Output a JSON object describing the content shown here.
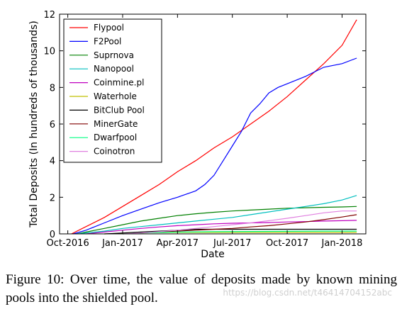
{
  "chart_data": {
    "type": "line",
    "xlabel": "Date",
    "ylabel": "Total Deposits (In hundreds of thousands)",
    "x_ticks": [
      "Oct-2016",
      "Jan-2017",
      "Apr-2017",
      "Jul-2017",
      "Oct-2017",
      "Jan-2018"
    ],
    "x_tick_positions_months": [
      0,
      3,
      6,
      9,
      12,
      15
    ],
    "xlim_months": [
      -0.45,
      16.3
    ],
    "ylim": [
      0,
      12
    ],
    "y_ticks": [
      0,
      2,
      4,
      6,
      8,
      10,
      12
    ],
    "grid": false,
    "legend_position": "top-left",
    "series": [
      {
        "name": "Flypool",
        "color": "#ff0000",
        "x": [
          0.2,
          1,
          2,
          3,
          4,
          5,
          6,
          7,
          8,
          9,
          10,
          11,
          12,
          13,
          14,
          15,
          15.8
        ],
        "y": [
          0,
          0.4,
          0.9,
          1.5,
          2.1,
          2.7,
          3.4,
          4.0,
          4.7,
          5.3,
          6.0,
          6.7,
          7.5,
          8.4,
          9.3,
          10.3,
          11.7
        ]
      },
      {
        "name": "F2Pool",
        "color": "#0000ff",
        "x": [
          0.3,
          1,
          2,
          3,
          4,
          5,
          6,
          7,
          7.5,
          8,
          8.5,
          9,
          9.5,
          10,
          10.5,
          11,
          11.5,
          12,
          13,
          14,
          15,
          15.8
        ],
        "y": [
          0,
          0.2,
          0.6,
          1.0,
          1.35,
          1.7,
          2.0,
          2.35,
          2.7,
          3.2,
          4.0,
          4.8,
          5.6,
          6.6,
          7.1,
          7.7,
          8.0,
          8.2,
          8.6,
          9.1,
          9.3,
          9.6
        ]
      },
      {
        "name": "Suprnova",
        "color": "#008000",
        "x": [
          0.5,
          1,
          2,
          3,
          4,
          5,
          6,
          7,
          8,
          9,
          10,
          11,
          12,
          13,
          14,
          15,
          15.8
        ],
        "y": [
          0,
          0.1,
          0.3,
          0.5,
          0.7,
          0.85,
          1.0,
          1.1,
          1.18,
          1.25,
          1.3,
          1.35,
          1.4,
          1.43,
          1.45,
          1.47,
          1.5
        ]
      },
      {
        "name": "Nanopool",
        "color": "#00bfbf",
        "x": [
          0.5,
          1,
          2,
          3,
          4,
          5,
          6,
          7,
          8,
          9,
          10,
          11,
          12,
          13,
          14,
          15,
          15.8
        ],
        "y": [
          0,
          0.05,
          0.15,
          0.3,
          0.4,
          0.5,
          0.6,
          0.7,
          0.8,
          0.9,
          1.05,
          1.2,
          1.35,
          1.5,
          1.65,
          1.85,
          2.1
        ]
      },
      {
        "name": "Coinmine.pl",
        "color": "#bf00bf",
        "x": [
          1,
          2,
          3,
          4,
          5,
          6,
          7,
          8,
          9,
          10,
          11,
          12,
          13,
          14,
          15,
          15.8
        ],
        "y": [
          0,
          0.1,
          0.2,
          0.3,
          0.38,
          0.45,
          0.5,
          0.55,
          0.58,
          0.6,
          0.62,
          0.65,
          0.67,
          0.7,
          0.72,
          0.74
        ]
      },
      {
        "name": "Waterhole",
        "color": "#bfbf00",
        "x": [
          2,
          3,
          4,
          5,
          6,
          8,
          10,
          12,
          14,
          15.8
        ],
        "y": [
          0,
          0.02,
          0.05,
          0.07,
          0.08,
          0.08,
          0.08,
          0.08,
          0.08,
          0.08
        ]
      },
      {
        "name": "BitClub Pool",
        "color": "#000000",
        "x": [
          2,
          3,
          4,
          5,
          6,
          7,
          8,
          10,
          12,
          14,
          15.8
        ],
        "y": [
          0,
          0.05,
          0.1,
          0.15,
          0.2,
          0.25,
          0.25,
          0.25,
          0.25,
          0.25,
          0.25
        ]
      },
      {
        "name": "MinerGate",
        "color": "#800000",
        "x": [
          3,
          4,
          5,
          6,
          7,
          8,
          9,
          10,
          11,
          12,
          13,
          14,
          15,
          15.8
        ],
        "y": [
          0,
          0.05,
          0.1,
          0.15,
          0.2,
          0.25,
          0.3,
          0.38,
          0.45,
          0.55,
          0.65,
          0.78,
          0.92,
          1.05
        ]
      },
      {
        "name": "Dwarfpool",
        "color": "#00ff80",
        "x": [
          3,
          4,
          6,
          8,
          10,
          12,
          14,
          15.8
        ],
        "y": [
          0,
          0.05,
          0.1,
          0.12,
          0.13,
          0.14,
          0.15,
          0.15
        ]
      },
      {
        "name": "Coinotron",
        "color": "#e080e0",
        "x": [
          3,
          4,
          5,
          6,
          7,
          8,
          9,
          10,
          11,
          12,
          13,
          14,
          15,
          15.8
        ],
        "y": [
          0,
          0.05,
          0.12,
          0.2,
          0.3,
          0.4,
          0.5,
          0.6,
          0.72,
          0.85,
          1.0,
          1.15,
          1.25,
          1.25
        ]
      }
    ]
  },
  "caption": "Figure 10: Over time, the value of deposits made by known mining pools into the shielded pool.",
  "watermark": "https://blog.csdn.net/t46414704152abc"
}
